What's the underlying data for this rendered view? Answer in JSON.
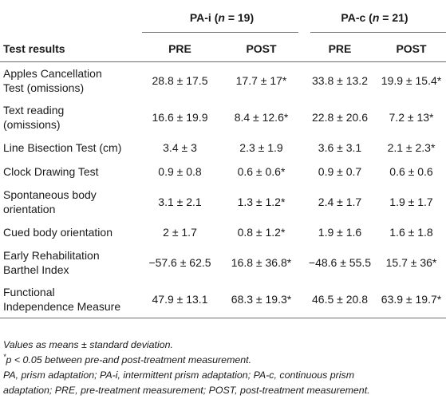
{
  "table": {
    "group_headers": {
      "g1": {
        "prefix": "PA-i (",
        "var": "n",
        "suffix": " = 19)"
      },
      "g2": {
        "prefix": "PA-c (",
        "var": "n",
        "suffix": " = 21)"
      }
    },
    "sub_headers": {
      "first": "Test results",
      "pre1": "PRE",
      "post1": "POST",
      "pre2": "PRE",
      "post2": "POST"
    },
    "rows": [
      {
        "label_a": "Apples Cancellation",
        "label_b": "Test (omissions)",
        "pa_i_pre": "28.8 ± 17.5",
        "pa_i_post": "17.7 ± 17*",
        "pa_c_pre": "33.8 ± 13.2",
        "pa_c_post": "19.9 ± 15.4*"
      },
      {
        "label_a": "Text reading",
        "label_b": "(omissions)",
        "pa_i_pre": "16.6 ± 19.9",
        "pa_i_post": "8.4 ± 12.6*",
        "pa_c_pre": "22.8 ± 20.6",
        "pa_c_post": "7.2 ± 13*"
      },
      {
        "label_a": "Line Bisection Test (cm)",
        "label_b": "",
        "pa_i_pre": "3.4 ± 3",
        "pa_i_post": "2.3 ± 1.9",
        "pa_c_pre": "3.6 ± 3.1",
        "pa_c_post": "2.1 ± 2.3*"
      },
      {
        "label_a": "Clock Drawing Test",
        "label_b": "",
        "pa_i_pre": "0.9 ± 0.8",
        "pa_i_post": "0.6 ± 0.6*",
        "pa_c_pre": "0.9 ± 0.7",
        "pa_c_post": "0.6 ± 0.6"
      },
      {
        "label_a": "Spontaneous body",
        "label_b": "orientation",
        "pa_i_pre": "3.1 ± 2.1",
        "pa_i_post": "1.3 ± 1.2*",
        "pa_c_pre": "2.4 ± 1.7",
        "pa_c_post": "1.9 ± 1.7"
      },
      {
        "label_a": "Cued body orientation",
        "label_b": "",
        "pa_i_pre": "2 ± 1.7",
        "pa_i_post": "0.8 ± 1.2*",
        "pa_c_pre": "1.9 ± 1.6",
        "pa_c_post": "1.6 ± 1.8"
      },
      {
        "label_a": "Early Rehabilitation",
        "label_b": "Barthel Index",
        "pa_i_pre": "−57.6 ± 62.5",
        "pa_i_post": "16.8 ± 36.8*",
        "pa_c_pre": "−48.6 ± 55.5",
        "pa_c_post": "15.7 ± 36*"
      },
      {
        "label_a": "Functional",
        "label_b": "Independence Measure",
        "pa_i_pre": "47.9 ± 13.1",
        "pa_i_post": "68.3 ± 19.3*",
        "pa_c_pre": "46.5 ± 20.8",
        "pa_c_post": "63.9 ± 19.7*"
      }
    ]
  },
  "notes": {
    "values": "Values as means ± standard deviation.",
    "sig_mark": "*",
    "sig_p": "p",
    "sig_rest": " < 0.05 between pre-and post-treatment measurement.",
    "abbrev_line1": "PA, prism adaptation; PA-i, intermittent prism adaptation; PA-c, continuous prism",
    "abbrev_line2": "adaptation; PRE, pre-treatment measurement; POST, post-treatment measurement."
  }
}
